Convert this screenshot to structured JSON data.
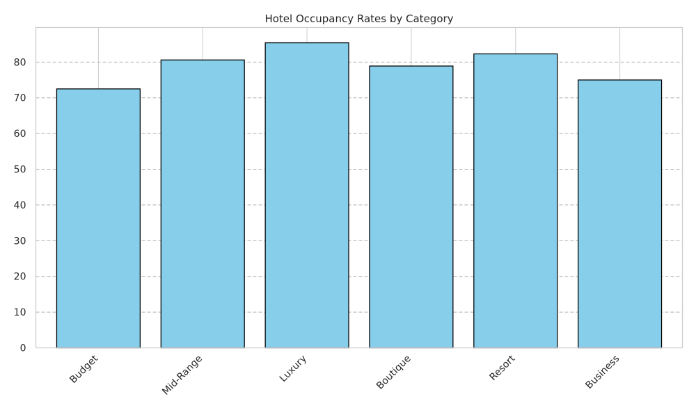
{
  "chart_data": {
    "type": "bar",
    "title": "Hotel Occupancy Rates by Category",
    "xlabel": "",
    "ylabel": "",
    "categories": [
      "Budget",
      "Mid-Range",
      "Luxury",
      "Boutique",
      "Resort",
      "Business"
    ],
    "values": [
      72.5,
      80.6,
      85.4,
      78.9,
      82.3,
      75.0
    ],
    "ylim": [
      0,
      89.7
    ],
    "yticks": [
      0,
      10,
      20,
      30,
      40,
      50,
      60,
      70,
      80
    ],
    "grid": {
      "y": "dashed",
      "x": "solid"
    },
    "colors": {
      "bar_fill": "#87ceeb",
      "bar_edge": "#000000",
      "grid": "#b0b0b0",
      "frame": "#cccccc"
    }
  }
}
